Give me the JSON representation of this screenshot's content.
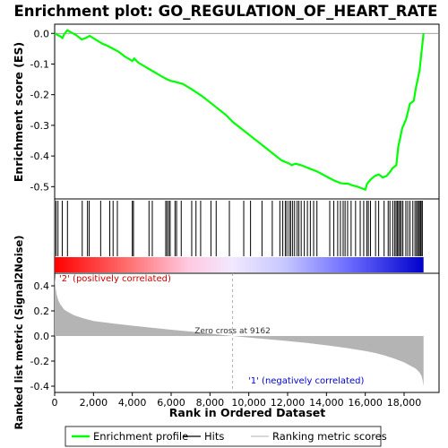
{
  "chart_data": {
    "type": "line",
    "title": "Enrichment plot: GO_REGULATION_OF_HEART_RATE",
    "xlabel": "Rank in Ordered Dataset",
    "x_ticks": [
      "0",
      "2,000",
      "4,000",
      "6,000",
      "8,000",
      "10,000",
      "12,000",
      "14,000",
      "16,000",
      "18,000"
    ],
    "x_tick_values": [
      0,
      2000,
      4000,
      6000,
      8000,
      10000,
      12000,
      14000,
      16000,
      18000
    ],
    "xlim": [
      0,
      19800
    ],
    "n_genes": 19000,
    "es_panel": {
      "ylabel": "Enrichment score (ES)",
      "ylim": [
        -0.54,
        0.03
      ],
      "y_ticks": [
        "0.0",
        "-0.1",
        "-0.2",
        "-0.3",
        "-0.4",
        "-0.5"
      ],
      "y_tick_values": [
        0.0,
        -0.1,
        -0.2,
        -0.3,
        -0.4,
        -0.5
      ],
      "color": "#00ff00",
      "x": [
        0,
        150,
        300,
        400,
        500,
        650,
        800,
        1100,
        1400,
        1600,
        1800,
        2100,
        2500,
        2700,
        3000,
        3300,
        3600,
        4000,
        4100,
        4300,
        4700,
        5100,
        5500,
        5800,
        6000,
        6200,
        6600,
        7000,
        7600,
        8200,
        8800,
        9200,
        9700,
        10300,
        10800,
        11300,
        11700,
        12100,
        12200,
        12400,
        12700,
        12900,
        13100,
        13500,
        13800,
        14100,
        14400,
        14700,
        14900,
        15100,
        15300,
        15600,
        15800,
        16000,
        16100,
        16300,
        16500,
        16700,
        16900,
        17100,
        17300,
        17400,
        17600,
        17700,
        17800,
        17900,
        18100,
        18300,
        18500,
        18600,
        18700,
        18800,
        18850,
        18900,
        18950,
        19000
      ],
      "y": [
        0.0,
        -0.005,
        -0.01,
        -0.015,
        -0.002,
        0.01,
        0.005,
        -0.005,
        -0.02,
        -0.015,
        -0.008,
        -0.02,
        -0.035,
        -0.04,
        -0.05,
        -0.06,
        -0.075,
        -0.09,
        -0.082,
        -0.095,
        -0.11,
        -0.125,
        -0.14,
        -0.15,
        -0.155,
        -0.158,
        -0.165,
        -0.18,
        -0.205,
        -0.235,
        -0.265,
        -0.29,
        -0.315,
        -0.345,
        -0.37,
        -0.395,
        -0.415,
        -0.425,
        -0.43,
        -0.425,
        -0.43,
        -0.435,
        -0.44,
        -0.45,
        -0.46,
        -0.47,
        -0.48,
        -0.488,
        -0.49,
        -0.49,
        -0.495,
        -0.5,
        -0.505,
        -0.51,
        -0.49,
        -0.475,
        -0.465,
        -0.46,
        -0.47,
        -0.465,
        -0.45,
        -0.44,
        -0.43,
        -0.37,
        -0.34,
        -0.31,
        -0.28,
        -0.23,
        -0.22,
        -0.18,
        -0.15,
        -0.12,
        -0.09,
        -0.06,
        -0.03,
        0.0
      ]
    },
    "hits": [
      70,
      170,
      390,
      660,
      1420,
      1690,
      1780,
      2370,
      2840,
      3010,
      3230,
      4000,
      4060,
      4860,
      5030,
      5720,
      5790,
      5880,
      5950,
      6200,
      6280,
      6520,
      7060,
      7280,
      7520,
      8050,
      8320,
      9000,
      9740,
      10090,
      10680,
      11210,
      11600,
      11750,
      11880,
      11960,
      12080,
      12160,
      12260,
      12360,
      12490,
      12580,
      12700,
      12860,
      13020,
      13170,
      13340,
      13510,
      14170,
      14380,
      14580,
      14720,
      14860,
      14960,
      15090,
      15270,
      15500,
      15740,
      15920,
      16080,
      16160,
      16270,
      16530,
      16690,
      16970,
      17180,
      17270,
      17420,
      17520,
      17590,
      17660,
      17720,
      17790,
      17860,
      17940,
      18090,
      18190,
      18300,
      18450,
      18560,
      18640,
      18700,
      18770,
      18830,
      18880,
      18940
    ],
    "metric_panel": {
      "ylabel": "Ranked list metric (Signal2Noise)",
      "ylim": [
        -0.45,
        0.5
      ],
      "y_ticks": [
        "0.4",
        "0.2",
        "0.0",
        "-0.2",
        "-0.4"
      ],
      "y_tick_values": [
        0.4,
        0.2,
        0.0,
        -0.2,
        -0.4
      ],
      "x": [
        0,
        50,
        100,
        200,
        300,
        500,
        700,
        1000,
        1500,
        2000,
        3000,
        4000,
        5000,
        6000,
        7000,
        8000,
        9162,
        10000,
        11000,
        12000,
        13000,
        14000,
        15000,
        16000,
        16500,
        17000,
        17500,
        18000,
        18300,
        18600,
        18800,
        18900,
        18950,
        19000
      ],
      "y": [
        0.47,
        0.38,
        0.33,
        0.28,
        0.25,
        0.21,
        0.19,
        0.165,
        0.14,
        0.12,
        0.1,
        0.082,
        0.066,
        0.05,
        0.036,
        0.02,
        0.0,
        -0.012,
        -0.026,
        -0.04,
        -0.056,
        -0.074,
        -0.095,
        -0.12,
        -0.135,
        -0.155,
        -0.18,
        -0.21,
        -0.235,
        -0.26,
        -0.29,
        -0.32,
        -0.35,
        -0.4
      ],
      "zero_cross_label": "Zero cross at 9162",
      "zero_cross": 9162,
      "pos_label": "'2' (positively correlated)",
      "neg_label": "'1' (negatively correlated)"
    },
    "legend": {
      "placement": "bottom",
      "items": [
        {
          "label": "Enrichment profile",
          "color": "#00ff00"
        },
        {
          "label": "Hits",
          "color": "#000000"
        },
        {
          "label": "Ranking metric scores",
          "color": "#c0c0c0"
        }
      ]
    }
  }
}
